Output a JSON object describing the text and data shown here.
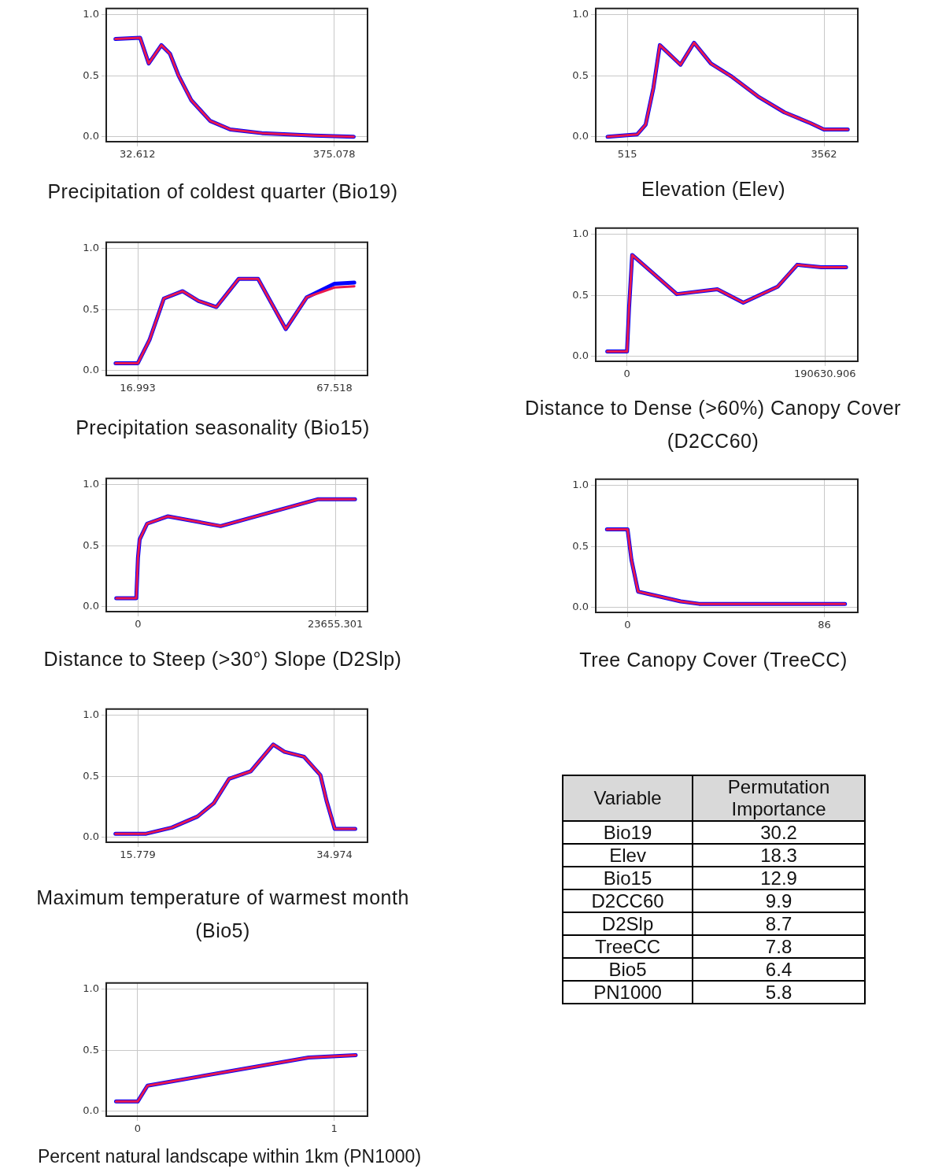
{
  "chart_data": [
    {
      "type": "line",
      "xlabel": "Precipitation of coldest quarter (Bio19)",
      "x": [
        -6,
        37,
        52,
        74,
        89,
        104,
        126,
        159,
        194,
        249,
        341,
        409
      ],
      "xlim": [
        -22,
        433
      ],
      "xticks": [
        32.612,
        375.078
      ],
      "ylim": [
        -0.04,
        1.05
      ],
      "yticks": [
        {
          "value": 0,
          "label": "0.0"
        },
        {
          "value": 0.5,
          "label": "0.5"
        },
        {
          "value": 1,
          "label": "1.0"
        }
      ],
      "grid": true,
      "series": [
        {
          "color": "#0000ff",
          "values": [
            0.8,
            0.81,
            0.6,
            0.75,
            0.68,
            0.5,
            0.3,
            0.13,
            0.06,
            0.03,
            0.01,
            0.0
          ]
        },
        {
          "color": "#e8194f",
          "values": [
            0.8,
            0.81,
            0.6,
            0.75,
            0.68,
            0.5,
            0.3,
            0.13,
            0.06,
            0.03,
            0.01,
            0.0
          ]
        }
      ]
    },
    {
      "type": "line",
      "xlabel": "Elevation (Elev)",
      "x": [
        210,
        670,
        800,
        920,
        1020,
        1340,
        1550,
        1810,
        2140,
        2540,
        2950,
        3360,
        3560,
        3930
      ],
      "xlim": [
        27,
        4086
      ],
      "xticks": [
        515,
        3562
      ],
      "ylim": [
        -0.04,
        1.05
      ],
      "yticks": [
        {
          "value": 0,
          "label": "0.0"
        },
        {
          "value": 0.5,
          "label": "0.5"
        },
        {
          "value": 1,
          "label": "1.0"
        }
      ],
      "grid": true,
      "series": [
        {
          "color": "#0000ff",
          "values": [
            0,
            0.02,
            0.1,
            0.4,
            0.75,
            0.59,
            0.77,
            0.6,
            0.49,
            0.33,
            0.2,
            0.11,
            0.06,
            0.06
          ]
        },
        {
          "color": "#e8194f",
          "values": [
            0,
            0.02,
            0.1,
            0.4,
            0.75,
            0.59,
            0.77,
            0.6,
            0.49,
            0.33,
            0.2,
            0.11,
            0.06,
            0.06
          ]
        }
      ]
    },
    {
      "type": "line",
      "xlabel": "Precipitation seasonality (Bio15)",
      "x": [
        11.3,
        17.0,
        20.0,
        23.7,
        28.5,
        32.6,
        37.2,
        42.9,
        47.9,
        55.0,
        60.4,
        67.5,
        72.6
      ],
      "xlim": [
        8.9,
        76.0
      ],
      "xticks": [
        16.993,
        67.518
      ],
      "ylim": [
        -0.04,
        1.05
      ],
      "yticks": [
        {
          "value": 0,
          "label": "0.0"
        },
        {
          "value": 0.5,
          "label": "0.5"
        },
        {
          "value": 1,
          "label": "1.0"
        }
      ],
      "grid": true,
      "series": [
        {
          "color": "#0000ff",
          "values": [
            0.06,
            0.06,
            0.25,
            0.59,
            0.65,
            0.57,
            0.52,
            0.75,
            0.75,
            0.34,
            0.6,
            0.71,
            0.72
          ]
        },
        {
          "color": "#e8194f",
          "values": [
            0.06,
            0.06,
            0.25,
            0.59,
            0.65,
            0.57,
            0.52,
            0.75,
            0.75,
            0.34,
            0.6,
            0.68,
            0.69
          ]
        }
      ]
    },
    {
      "type": "line",
      "xlabel": "Distance to Dense (>60%) Canopy Cover (D2CC60)",
      "x": [
        -19000,
        0,
        2000,
        5000,
        48000,
        87000,
        112000,
        145000,
        164000,
        187000,
        211000
      ],
      "xlim": [
        -30100,
        222300
      ],
      "xticks": [
        0,
        190630.906
      ],
      "ylim": [
        -0.04,
        1.05
      ],
      "yticks": [
        {
          "value": 0,
          "label": "0.0"
        },
        {
          "value": 0.5,
          "label": "0.5"
        },
        {
          "value": 1,
          "label": "1.0"
        }
      ],
      "grid": true,
      "series": [
        {
          "color": "#0000ff",
          "values": [
            0.04,
            0.04,
            0.4,
            0.83,
            0.51,
            0.55,
            0.44,
            0.57,
            0.75,
            0.73,
            0.73
          ]
        },
        {
          "color": "#e8194f",
          "values": [
            0.04,
            0.04,
            0.4,
            0.83,
            0.51,
            0.55,
            0.44,
            0.57,
            0.75,
            0.73,
            0.73
          ]
        }
      ]
    },
    {
      "type": "line",
      "xlabel": "Distance to Steep (>30°) Slope (D2Slp)",
      "x": [
        -2600,
        -200,
        0,
        200,
        1100,
        3600,
        9900,
        21600,
        26000
      ],
      "xlim": [
        -3800,
        27500
      ],
      "xticks": [
        0,
        23655.301
      ],
      "ylim": [
        -0.04,
        1.05
      ],
      "yticks": [
        {
          "value": 0,
          "label": "0.0"
        },
        {
          "value": 0.5,
          "label": "0.5"
        },
        {
          "value": 1,
          "label": "1.0"
        }
      ],
      "grid": true,
      "series": [
        {
          "color": "#0000ff",
          "values": [
            0.07,
            0.07,
            0.4,
            0.55,
            0.68,
            0.74,
            0.66,
            0.88,
            0.88
          ]
        },
        {
          "color": "#e8194f",
          "values": [
            0.07,
            0.07,
            0.4,
            0.55,
            0.68,
            0.74,
            0.66,
            0.88,
            0.88
          ]
        }
      ]
    },
    {
      "type": "line",
      "xlabel": "Tree Canopy Cover (TreeCC)",
      "x": [
        -9.0,
        0,
        1.7,
        4.6,
        11.6,
        23.2,
        31.3,
        95.0
      ],
      "xlim": [
        -13.9,
        100.6
      ],
      "xticks": [
        0,
        86
      ],
      "ylim": [
        -0.04,
        1.05
      ],
      "yticks": [
        {
          "value": 0,
          "label": "0.0"
        },
        {
          "value": 0.5,
          "label": "0.5"
        },
        {
          "value": 1,
          "label": "1.0"
        }
      ],
      "grid": true,
      "series": [
        {
          "color": "#0000ff",
          "values": [
            0.64,
            0.64,
            0.39,
            0.13,
            0.1,
            0.05,
            0.03,
            0.03
          ]
        },
        {
          "color": "#e8194f",
          "values": [
            0.64,
            0.64,
            0.39,
            0.13,
            0.1,
            0.05,
            0.03,
            0.03
          ]
        }
      ]
    },
    {
      "type": "line",
      "xlabel": "Maximum temperature of warmest month (Bio5)",
      "x": [
        13.6,
        16.6,
        19.1,
        21.6,
        23.2,
        24.7,
        26.8,
        29.0,
        30.1,
        32.0,
        33.6,
        34.2,
        35.0,
        37.0
      ],
      "xlim": [
        12.7,
        38.2
      ],
      "xticks": [
        15.779,
        34.974
      ],
      "ylim": [
        -0.04,
        1.05
      ],
      "yticks": [
        {
          "value": 0,
          "label": "0.0"
        },
        {
          "value": 0.5,
          "label": "0.5"
        },
        {
          "value": 1,
          "label": "1.0"
        }
      ],
      "grid": true,
      "series": [
        {
          "color": "#0000ff",
          "values": [
            0.03,
            0.03,
            0.08,
            0.17,
            0.28,
            0.48,
            0.54,
            0.76,
            0.7,
            0.66,
            0.51,
            0.3,
            0.07,
            0.07
          ]
        },
        {
          "color": "#e8194f",
          "values": [
            0.03,
            0.03,
            0.08,
            0.17,
            0.28,
            0.48,
            0.54,
            0.76,
            0.7,
            0.66,
            0.51,
            0.3,
            0.07,
            0.07
          ]
        }
      ]
    },
    {
      "type": "other",
      "xlabel": "Variable",
      "ylabel": "Permutation Importance",
      "categories": [
        "Bio19",
        "Elev",
        "Bio15",
        "D2CC60",
        "D2Slp",
        "TreeCC",
        "Bio5",
        "PN1000"
      ],
      "values": [
        30.2,
        18.3,
        12.9,
        9.9,
        8.7,
        7.8,
        6.4,
        5.8
      ],
      "data_labels": true
    },
    {
      "type": "line",
      "xlabel": "Percent natural landscape within 1km (PN1000)",
      "x": [
        -0.11,
        0,
        0.05,
        0.87,
        1.11
      ],
      "xlim": [
        -0.16,
        1.17
      ],
      "xticks": [
        0,
        1
      ],
      "ylim": [
        -0.04,
        1.05
      ],
      "yticks": [
        {
          "value": 0,
          "label": "0.0"
        },
        {
          "value": 0.5,
          "label": "0.5"
        },
        {
          "value": 1,
          "label": "1.0"
        }
      ],
      "grid": true,
      "series": [
        {
          "color": "#0000ff",
          "values": [
            0.08,
            0.08,
            0.21,
            0.44,
            0.46
          ]
        },
        {
          "color": "#e8194f",
          "values": [
            0.08,
            0.08,
            0.21,
            0.44,
            0.46
          ]
        }
      ]
    }
  ]
}
